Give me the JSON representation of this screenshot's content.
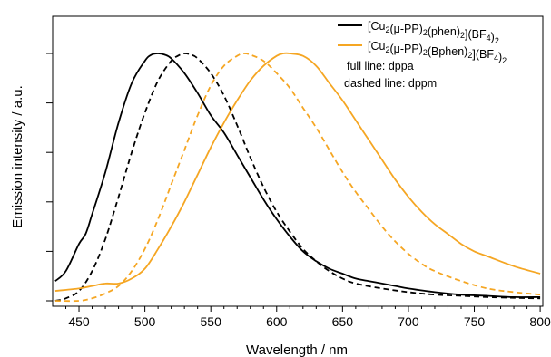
{
  "chart_data": {
    "type": "line",
    "title": "",
    "xlabel": "Wavelength  /  nm",
    "ylabel": "Emission intensity  /  a.u.",
    "xlim": [
      430,
      802
    ],
    "ylim": [
      0,
      1.0
    ],
    "x_ticks": [
      450,
      500,
      550,
      600,
      650,
      700,
      750,
      800
    ],
    "y_tick_values": [
      0.0,
      0.2,
      0.4,
      0.6,
      0.8,
      1.0
    ],
    "y_tick_labels_shown": false,
    "grid": false,
    "legend_position": "top-right",
    "colors": {
      "black": "#000000",
      "orange": "#f5a623"
    },
    "annotations": [
      "full line: dppa",
      "dashed line: dppm"
    ],
    "legend": [
      {
        "parts": [
          [
            "[Cu",
            "n"
          ],
          [
            "2",
            "sub"
          ],
          [
            "(μ-PP)",
            "n"
          ],
          [
            "2",
            "sub"
          ],
          [
            "(phen)",
            "n"
          ],
          [
            "2",
            "sub"
          ],
          [
            "](BF",
            "n"
          ],
          [
            "4",
            "sub"
          ],
          [
            ")",
            "n"
          ],
          [
            "2",
            "sub"
          ]
        ],
        "color": "#000000"
      },
      {
        "parts": [
          [
            "[Cu",
            "n"
          ],
          [
            "2",
            "sub"
          ],
          [
            "(μ-PP)",
            "n"
          ],
          [
            "2",
            "sub"
          ],
          [
            "(Bphen)",
            "n"
          ],
          [
            "2",
            "sub"
          ],
          [
            "](BF",
            "n"
          ],
          [
            "4",
            "sub"
          ],
          [
            ")",
            "n"
          ],
          [
            "2",
            "sub"
          ]
        ],
        "color": "#f5a623"
      }
    ],
    "series": [
      {
        "color": "#000000",
        "dash": "solid",
        "compound": "phen",
        "ligand": "dppa",
        "x": [
          432,
          440,
          450,
          455,
          460,
          470,
          480,
          490,
          500,
          505,
          510,
          515,
          520,
          530,
          540,
          550,
          560,
          570,
          580,
          590,
          600,
          610,
          620,
          630,
          640,
          650,
          660,
          670,
          680,
          690,
          700,
          720,
          740,
          760,
          780,
          800
        ],
        "y": [
          0.08,
          0.12,
          0.23,
          0.27,
          0.35,
          0.52,
          0.72,
          0.88,
          0.97,
          0.995,
          1.0,
          0.995,
          0.98,
          0.92,
          0.84,
          0.75,
          0.68,
          0.59,
          0.5,
          0.41,
          0.33,
          0.26,
          0.2,
          0.16,
          0.13,
          0.11,
          0.09,
          0.08,
          0.07,
          0.06,
          0.05,
          0.035,
          0.025,
          0.02,
          0.015,
          0.015
        ]
      },
      {
        "color": "#000000",
        "dash": "dashed",
        "compound": "phen",
        "ligand": "dppm",
        "x": [
          432,
          440,
          450,
          460,
          470,
          480,
          490,
          500,
          510,
          520,
          525,
          530,
          535,
          540,
          550,
          560,
          570,
          580,
          590,
          600,
          610,
          620,
          630,
          640,
          650,
          660,
          680,
          700,
          720,
          740,
          760,
          780,
          800
        ],
        "y": [
          0.0,
          0.01,
          0.04,
          0.12,
          0.25,
          0.42,
          0.6,
          0.76,
          0.89,
          0.97,
          0.99,
          1.0,
          0.995,
          0.98,
          0.92,
          0.83,
          0.71,
          0.58,
          0.46,
          0.36,
          0.28,
          0.21,
          0.16,
          0.12,
          0.09,
          0.07,
          0.05,
          0.035,
          0.025,
          0.02,
          0.015,
          0.012,
          0.01
        ]
      },
      {
        "color": "#f5a623",
        "dash": "solid",
        "compound": "Bphen",
        "ligand": "dppa",
        "x": [
          432,
          450,
          460,
          470,
          480,
          490,
          500,
          510,
          520,
          530,
          540,
          550,
          560,
          570,
          580,
          590,
          600,
          605,
          610,
          620,
          630,
          640,
          650,
          660,
          670,
          680,
          690,
          700,
          710,
          720,
          730,
          740,
          750,
          760,
          780,
          800
        ],
        "y": [
          0.04,
          0.05,
          0.06,
          0.07,
          0.07,
          0.09,
          0.13,
          0.21,
          0.3,
          0.4,
          0.51,
          0.62,
          0.72,
          0.81,
          0.89,
          0.95,
          0.99,
          1.0,
          1.0,
          0.99,
          0.95,
          0.88,
          0.81,
          0.73,
          0.65,
          0.57,
          0.49,
          0.42,
          0.36,
          0.31,
          0.27,
          0.23,
          0.2,
          0.18,
          0.14,
          0.11
        ]
      },
      {
        "color": "#f5a623",
        "dash": "dashed",
        "compound": "Bphen",
        "ligand": "dppm",
        "x": [
          432,
          450,
          460,
          470,
          480,
          490,
          500,
          510,
          520,
          530,
          540,
          550,
          560,
          570,
          575,
          580,
          590,
          600,
          610,
          620,
          630,
          640,
          650,
          660,
          670,
          680,
          690,
          700,
          710,
          720,
          740,
          760,
          780,
          800
        ],
        "y": [
          0.0,
          0.0,
          0.01,
          0.03,
          0.06,
          0.12,
          0.21,
          0.33,
          0.47,
          0.61,
          0.75,
          0.87,
          0.95,
          0.99,
          1.0,
          0.995,
          0.97,
          0.92,
          0.86,
          0.78,
          0.7,
          0.61,
          0.52,
          0.44,
          0.37,
          0.3,
          0.24,
          0.19,
          0.15,
          0.12,
          0.08,
          0.05,
          0.035,
          0.025
        ]
      }
    ]
  }
}
